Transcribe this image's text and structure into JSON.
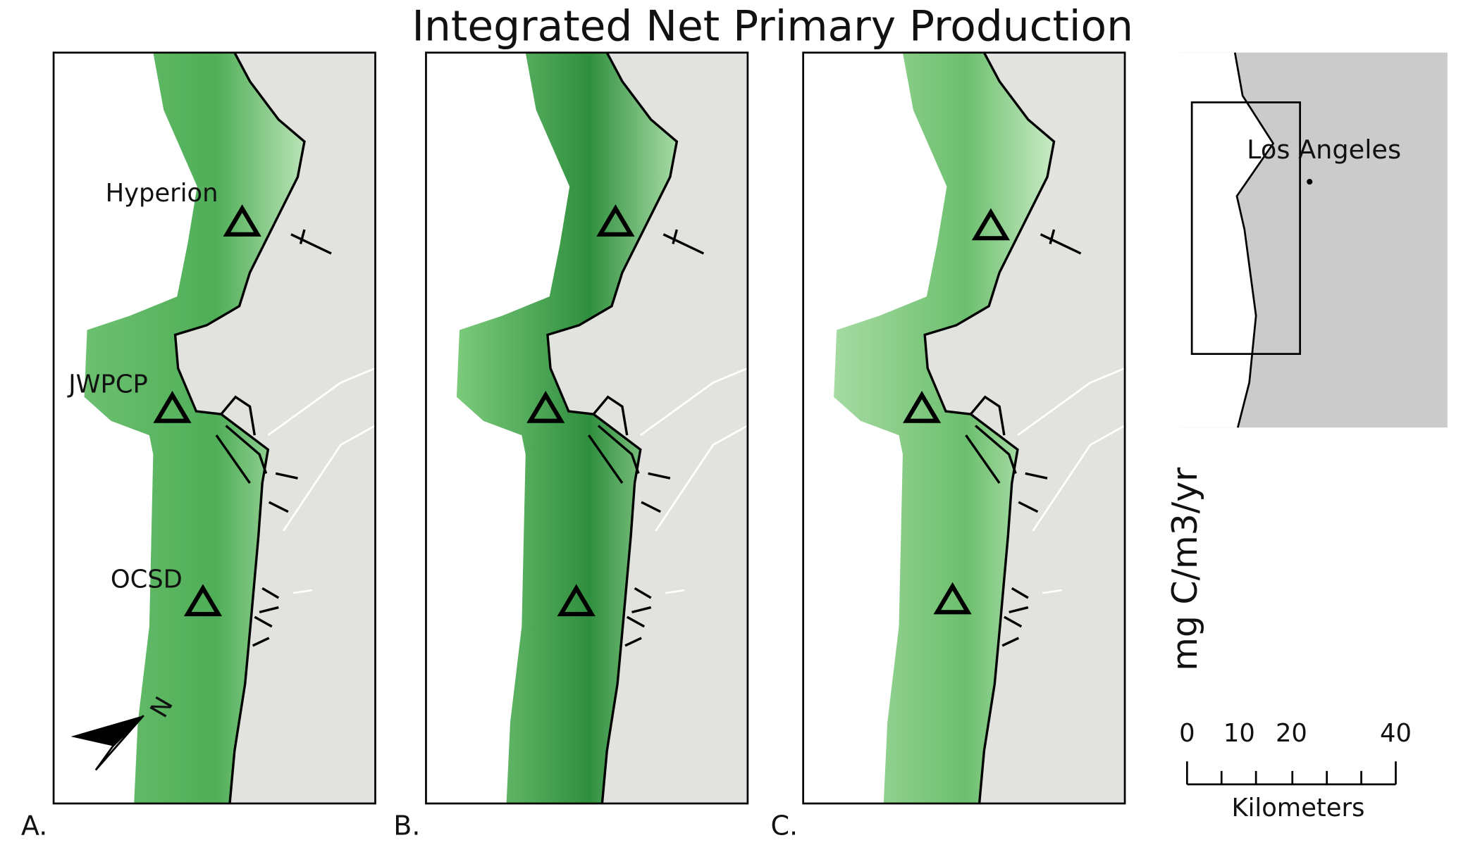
{
  "title": "Integrated Net Primary Production",
  "panels": [
    {
      "label": "A."
    },
    {
      "label": "B."
    },
    {
      "label": "C."
    }
  ],
  "sites": [
    "Hyperion",
    "JWPCP",
    "OCSD"
  ],
  "north": "N",
  "inset": {
    "city": "Los Angeles"
  },
  "legend": {
    "label": "mg C/m3/yr"
  },
  "scale_bar": {
    "ticks": [
      0,
      10,
      20,
      40
    ],
    "unit": "Kilometers"
  }
}
